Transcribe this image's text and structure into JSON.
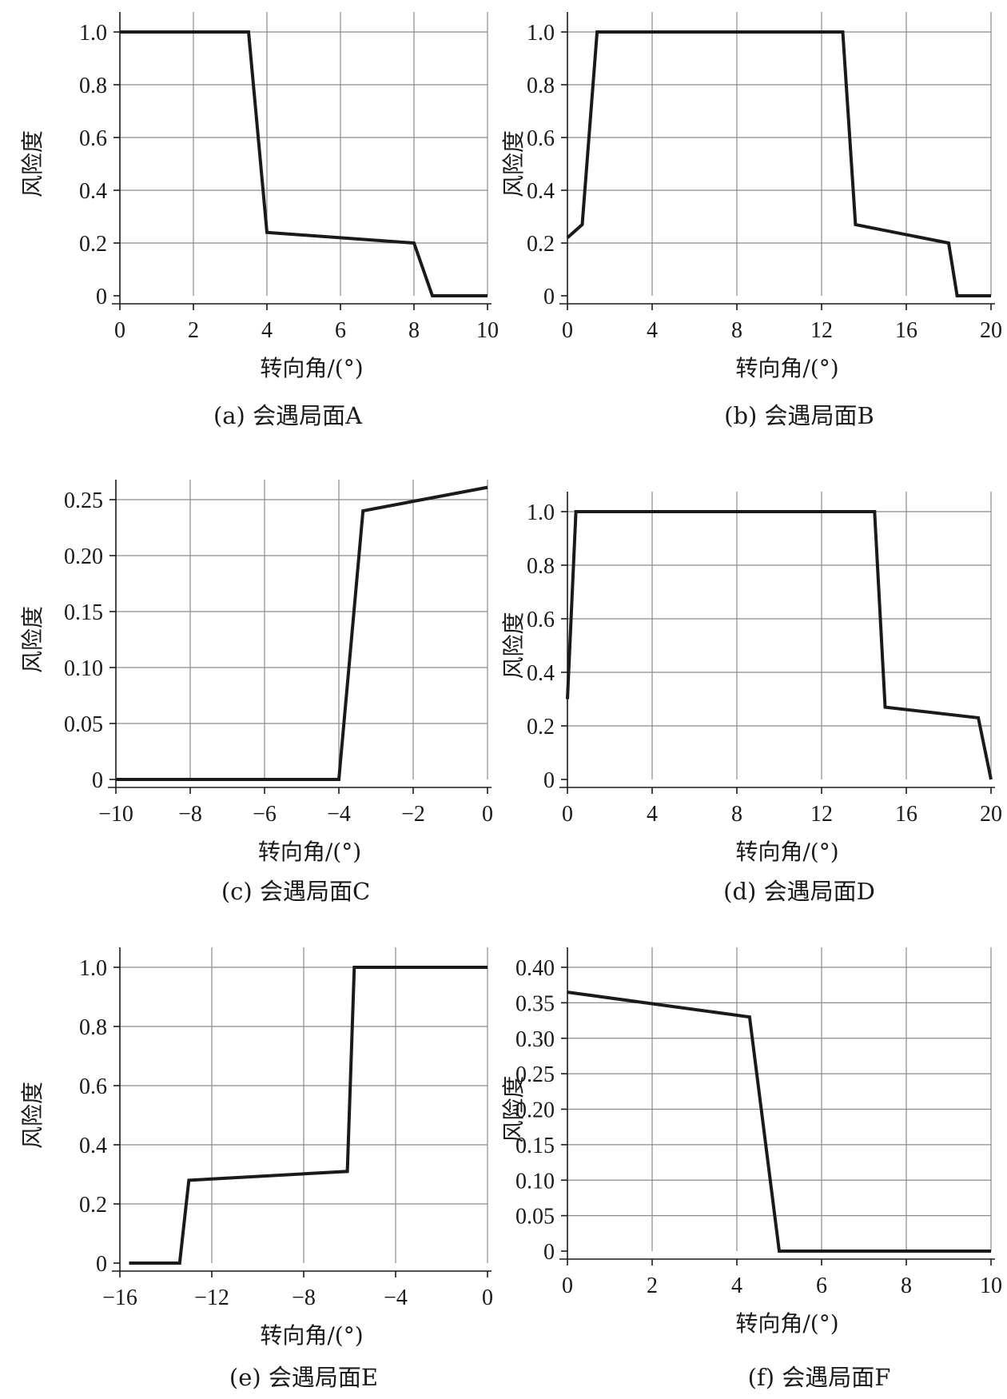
{
  "figure": {
    "panels": [
      {
        "id": "a",
        "caption": "(a) 会遇局面A",
        "xlabel": "转向角/(°)",
        "ylabel": "风险度"
      },
      {
        "id": "b",
        "caption": "(b) 会遇局面B",
        "xlabel": "转向角/(°)",
        "ylabel": "风险度"
      },
      {
        "id": "c",
        "caption": "(c) 会遇局面C",
        "xlabel": "转向角/(°)",
        "ylabel": "风险度"
      },
      {
        "id": "d",
        "caption": "(d) 会遇局面D",
        "xlabel": "转向角/(°)",
        "ylabel": "风险度"
      },
      {
        "id": "e",
        "caption": "(e) 会遇局面E",
        "xlabel": "转向角/(°)",
        "ylabel": "风险度"
      },
      {
        "id": "f",
        "caption": "(f) 会遇局面F",
        "xlabel": "转向角/(°)",
        "ylabel": "风险度"
      }
    ]
  },
  "chart_data": [
    {
      "type": "line",
      "title": "(a) 会遇局面A",
      "xlabel": "转向角/(°)",
      "ylabel": "风险度",
      "xlim": [
        0,
        10
      ],
      "ylim": [
        0,
        1.0
      ],
      "xticks": [
        0,
        2,
        4,
        6,
        8,
        10
      ],
      "xtick_labels": [
        "0",
        "2",
        "4",
        "6",
        "8",
        "10"
      ],
      "yticks": [
        0,
        0.2,
        0.4,
        0.6,
        0.8,
        1.0
      ],
      "ytick_labels": [
        "0",
        "0.2",
        "0.4",
        "0.6",
        "0.8",
        "1.0"
      ],
      "grid": true,
      "series": [
        {
          "x": [
            0,
            3.5,
            4.0,
            8.0,
            8.5,
            10.0
          ],
          "y": [
            1.0,
            1.0,
            0.24,
            0.2,
            0.0,
            0.0
          ]
        }
      ]
    },
    {
      "type": "line",
      "title": "(b) 会遇局面B",
      "xlabel": "转向角/(°)",
      "ylabel": "风险度",
      "xlim": [
        0,
        20
      ],
      "ylim": [
        0,
        1.0
      ],
      "xticks": [
        0,
        4,
        8,
        12,
        16,
        20
      ],
      "xtick_labels": [
        "0",
        "4",
        "8",
        "12",
        "16",
        "20"
      ],
      "yticks": [
        0,
        0.2,
        0.4,
        0.6,
        0.8,
        1.0
      ],
      "ytick_labels": [
        "0",
        "0.2",
        "0.4",
        "0.6",
        "0.8",
        "1.0"
      ],
      "grid": true,
      "series": [
        {
          "x": [
            0,
            0.7,
            1.4,
            13.0,
            13.6,
            18.0,
            18.4,
            20.0
          ],
          "y": [
            0.22,
            0.27,
            1.0,
            1.0,
            0.27,
            0.2,
            0.0,
            0.0
          ]
        }
      ]
    },
    {
      "type": "line",
      "title": "(c) 会遇局面C",
      "xlabel": "转向角/(°)",
      "ylabel": "风险度",
      "xlim": [
        -10,
        0
      ],
      "ylim": [
        0,
        0.25
      ],
      "xticks": [
        -10,
        -8,
        -6,
        -4,
        -2,
        0
      ],
      "xtick_labels": [
        "−10",
        "−8",
        "−6",
        "−4",
        "−2",
        "0"
      ],
      "yticks": [
        0,
        0.05,
        0.1,
        0.15,
        0.2,
        0.25
      ],
      "ytick_labels": [
        "0",
        "0.05",
        "0.10",
        "0.15",
        "0.20",
        "0.25"
      ],
      "grid": true,
      "series": [
        {
          "x": [
            -10,
            -4.0,
            -3.35,
            0
          ],
          "y": [
            0.0,
            0.0,
            0.24,
            0.261
          ]
        }
      ]
    },
    {
      "type": "line",
      "title": "(d) 会遇局面D",
      "xlabel": "转向角/(°)",
      "ylabel": "风险度",
      "xlim": [
        0,
        20
      ],
      "ylim": [
        0,
        1.0
      ],
      "xticks": [
        0,
        4,
        8,
        12,
        16,
        20
      ],
      "xtick_labels": [
        "0",
        "4",
        "8",
        "12",
        "16",
        "20"
      ],
      "yticks": [
        0,
        0.2,
        0.4,
        0.6,
        0.8,
        1.0
      ],
      "ytick_labels": [
        "0",
        "0.2",
        "0.4",
        "0.6",
        "0.8",
        "1.0"
      ],
      "grid": true,
      "series": [
        {
          "x": [
            0,
            0.4,
            14.5,
            15.0,
            19.4,
            20.0
          ],
          "y": [
            0.3,
            1.0,
            1.0,
            0.27,
            0.23,
            0.0
          ]
        }
      ]
    },
    {
      "type": "line",
      "title": "(e) 会遇局面E",
      "xlabel": "转向角/(°)",
      "ylabel": "风险度",
      "xlim": [
        -16,
        0
      ],
      "ylim": [
        0,
        1.0
      ],
      "xticks": [
        -16,
        -12,
        -8,
        -4,
        0
      ],
      "xtick_labels": [
        "−16",
        "−12",
        "−8",
        "−4",
        "0"
      ],
      "yticks": [
        0,
        0.2,
        0.4,
        0.6,
        0.8,
        1.0
      ],
      "ytick_labels": [
        "0",
        "0.2",
        "0.4",
        "0.6",
        "0.8",
        "1.0"
      ],
      "grid": true,
      "series": [
        {
          "x": [
            -15.6,
            -13.4,
            -13.0,
            -6.1,
            -5.8,
            0
          ],
          "y": [
            0.0,
            0.0,
            0.28,
            0.31,
            1.0,
            1.0
          ]
        }
      ]
    },
    {
      "type": "line",
      "title": "(f) 会遇局面F",
      "xlabel": "转向角/(°)",
      "ylabel": "风险度",
      "xlim": [
        0,
        10
      ],
      "ylim": [
        0,
        0.4
      ],
      "xticks": [
        0,
        2,
        4,
        6,
        8,
        10
      ],
      "xtick_labels": [
        "0",
        "2",
        "4",
        "6",
        "8",
        "10"
      ],
      "yticks": [
        0,
        0.05,
        0.1,
        0.15,
        0.2,
        0.25,
        0.3,
        0.35,
        0.4
      ],
      "ytick_labels": [
        "0",
        "0.05",
        "0.10",
        "0.15",
        "0.20",
        "0.25",
        "0.30",
        "0.35",
        "0.40"
      ],
      "grid": true,
      "series": [
        {
          "x": [
            0,
            4.3,
            5.0,
            10.0
          ],
          "y": [
            0.365,
            0.33,
            0.0,
            0.0
          ]
        }
      ]
    }
  ]
}
